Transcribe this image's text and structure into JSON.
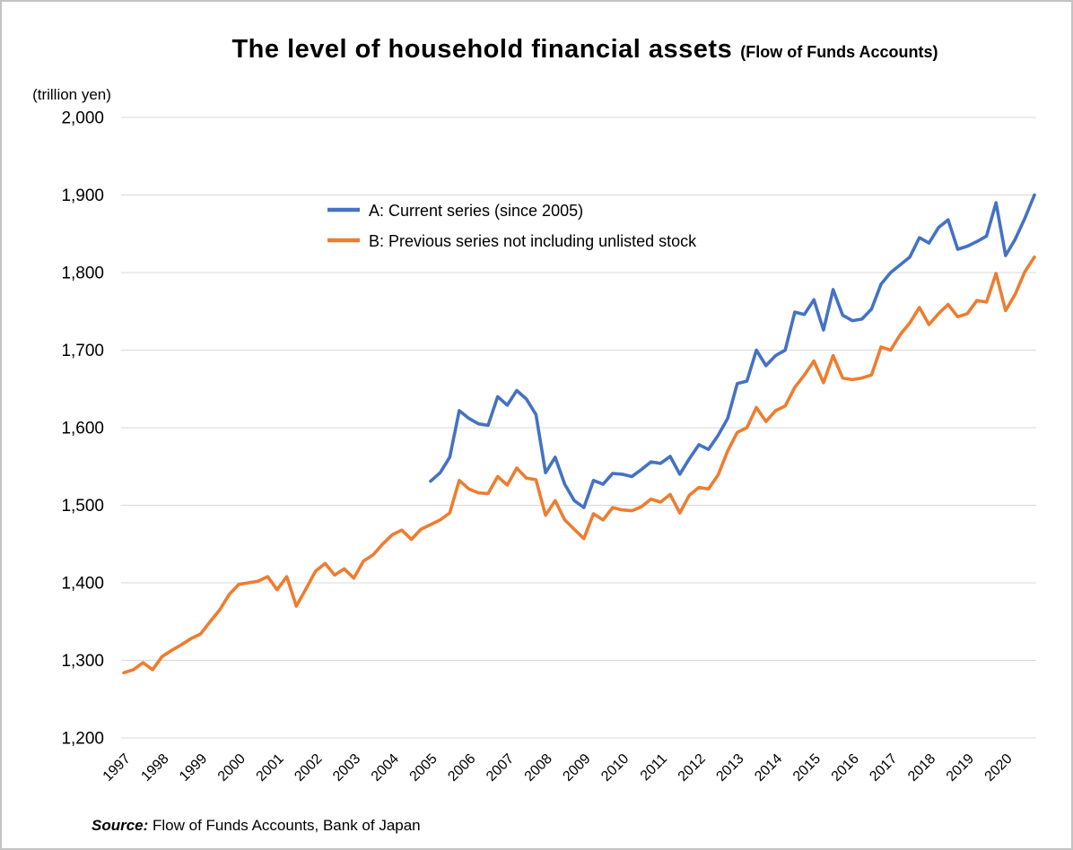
{
  "title": {
    "main": "The level of household financial assets",
    "suffix": "(Flow of Funds Accounts)"
  },
  "y_axis_unit": "(trillion yen)",
  "source": {
    "label": "Source:",
    "text": " Flow of Funds Accounts, Bank of Japan"
  },
  "legend": [
    {
      "name": "A: Current series (since 2005)",
      "color": "#4472C4"
    },
    {
      "name": "B: Previous series not including unlisted stock",
      "color": "#ED7D31"
    }
  ],
  "chart_data": {
    "type": "line",
    "frequency": "quarterly",
    "x_years": [
      "1997",
      "1998",
      "1999",
      "2000",
      "2001",
      "2002",
      "2003",
      "2004",
      "2005",
      "2006",
      "2007",
      "2008",
      "2009",
      "2010",
      "2011",
      "2012",
      "2013",
      "2014",
      "2015",
      "2016",
      "2017",
      "2018",
      "2019",
      "2020"
    ],
    "ylim": [
      1200,
      2000
    ],
    "grid": true,
    "legend_position": "upper-left-inside",
    "y_ticks": [
      {
        "value": 1200,
        "label": "1,200"
      },
      {
        "value": 1300,
        "label": "1,300"
      },
      {
        "value": 1400,
        "label": "1,400"
      },
      {
        "value": 1500,
        "label": "1,500"
      },
      {
        "value": 1600,
        "label": "1,600"
      },
      {
        "value": 1700,
        "label": "1,700"
      },
      {
        "value": 1800,
        "label": "1,800"
      },
      {
        "value": 1900,
        "label": "1,900"
      },
      {
        "value": 2000,
        "label": "2,000"
      }
    ],
    "series": [
      {
        "name": "B: Previous series not including unlisted stock",
        "color": "#ED7D31",
        "start": "1997Q1",
        "start_year": 1997,
        "values": [
          1284,
          1288,
          1297,
          1288,
          1305,
          1313,
          1320,
          1328,
          1334,
          1350,
          1365,
          1385,
          1398,
          1400,
          1402,
          1408,
          1391,
          1408,
          1370,
          1392,
          1415,
          1425,
          1410,
          1418,
          1406,
          1428,
          1436,
          1450,
          1462,
          1468,
          1456,
          1469,
          1475,
          1481,
          1490,
          1532,
          1521,
          1516,
          1515,
          1537,
          1526,
          1548,
          1535,
          1533,
          1487,
          1506,
          1481,
          1469,
          1457,
          1489,
          1481,
          1497,
          1494,
          1493,
          1498,
          1508,
          1504,
          1514,
          1490,
          1513,
          1523,
          1521,
          1539,
          1570,
          1594,
          1600,
          1626,
          1608,
          1622,
          1628,
          1652,
          1668,
          1686,
          1658,
          1693,
          1664,
          1662,
          1664,
          1668,
          1704,
          1700,
          1720,
          1735,
          1755,
          1733,
          1747,
          1759,
          1743,
          1747,
          1764,
          1762,
          1799,
          1751,
          1772,
          1801,
          1820
        ]
      },
      {
        "name": "A: Current series (since 2005)",
        "color": "#4472C4",
        "start": "2005Q1",
        "start_year": 2005,
        "values": [
          1531,
          1542,
          1562,
          1622,
          1612,
          1605,
          1603,
          1640,
          1629,
          1648,
          1637,
          1617,
          1542,
          1562,
          1527,
          1506,
          1497,
          1532,
          1527,
          1541,
          1540,
          1537,
          1546,
          1556,
          1554,
          1563,
          1540,
          1560,
          1578,
          1572,
          1590,
          1612,
          1657,
          1660,
          1700,
          1680,
          1693,
          1700,
          1749,
          1746,
          1765,
          1726,
          1778,
          1745,
          1738,
          1740,
          1753,
          1785,
          1800,
          1810,
          1820,
          1845,
          1838,
          1858,
          1868,
          1830,
          1834,
          1840,
          1847,
          1890,
          1822,
          1843,
          1870,
          1900
        ]
      }
    ]
  }
}
